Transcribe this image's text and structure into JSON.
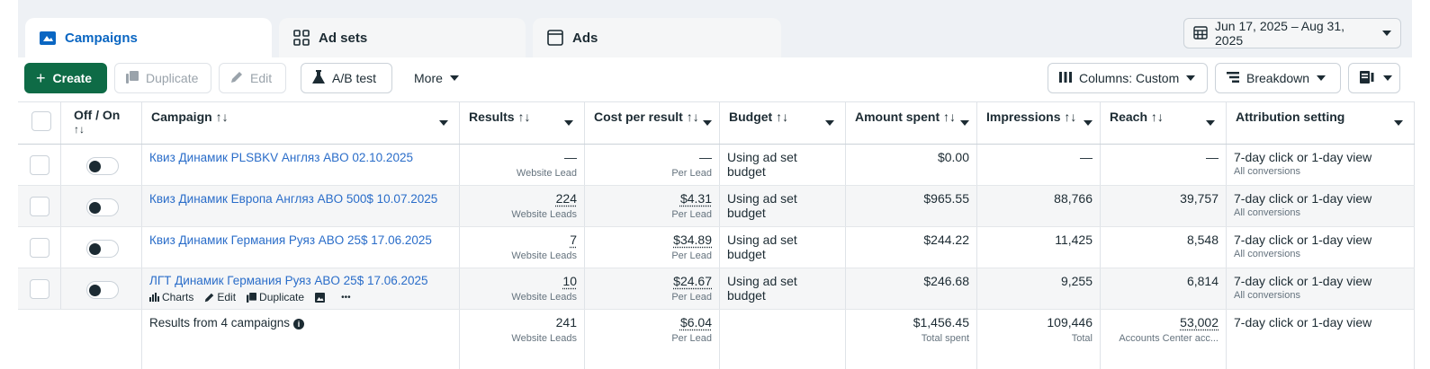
{
  "tabs": [
    {
      "label": "Campaigns",
      "icon": "campaigns-folder-icon",
      "active": true
    },
    {
      "label": "Ad sets",
      "icon": "grid-icon",
      "active": false
    },
    {
      "label": "Ads",
      "icon": "ad-frame-icon",
      "active": false
    }
  ],
  "date_range": {
    "label": "Jun 17, 2025 – Aug 31, 2025",
    "icon": "calendar-icon"
  },
  "toolbar": {
    "create_label": "Create",
    "duplicate_label": "Duplicate",
    "edit_label": "Edit",
    "ab_test_label": "A/B test",
    "more_label": "More",
    "columns_label": "Columns: Custom",
    "breakdown_label": "Breakdown"
  },
  "columns": {
    "off_on": "Off / On",
    "off_on_sort": "↑↓",
    "campaign": "Campaign ↑↓",
    "results": "Results ↑↓",
    "cost_per_result": "Cost per result ↑↓",
    "budget": "Budget ↑↓",
    "amount_spent": "Amount spent ↑↓",
    "impressions": "Impressions ↑↓",
    "reach": "Reach ↑↓",
    "attribution": "Attribution setting"
  },
  "rows": [
    {
      "name": "Квиз Динамик PLSBKV Англяз ABO 02.10.2025",
      "results": "—",
      "results_sub": "Website Lead",
      "cost": "—",
      "cost_sub": "Per Lead",
      "budget": "Using ad set budget",
      "spent": "$0.00",
      "impressions": "—",
      "reach": "—",
      "attribution": "7-day click or 1-day view",
      "attribution_sub": "All conversions"
    },
    {
      "name": "Квиз Динамик Европа Англяз ABO 500$ 10.07.2025",
      "results": "224",
      "results_sub": "Website Leads",
      "cost": "$4.31",
      "cost_sub": "Per Lead",
      "budget": "Using ad set budget",
      "spent": "$965.55",
      "impressions": "88,766",
      "reach": "39,757",
      "attribution": "7-day click or 1-day view",
      "attribution_sub": "All conversions"
    },
    {
      "name": "Квиз Динамик Германия Руяз ABO 25$ 17.06.2025",
      "results": "7",
      "results_sub": "Website Leads",
      "cost": "$34.89",
      "cost_sub": "Per Lead",
      "budget": "Using ad set budget",
      "spent": "$244.22",
      "impressions": "11,425",
      "reach": "8,548",
      "attribution": "7-day click or 1-day view",
      "attribution_sub": "All conversions"
    },
    {
      "name": "ЛГТ Динамик Германия Руяз ABO 25$ 17.06.2025",
      "results": "10",
      "results_sub": "Website Leads",
      "cost": "$24.67",
      "cost_sub": "Per Lead",
      "budget": "Using ad set budget",
      "spent": "$246.68",
      "impressions": "9,255",
      "reach": "6,814",
      "attribution": "7-day click or 1-day view",
      "attribution_sub": "All conversions",
      "actions": {
        "charts": "Charts",
        "edit": "Edit",
        "duplicate": "Duplicate",
        "more": "•••"
      }
    }
  ],
  "summary": {
    "label": "Results from 4 campaigns",
    "results": "241",
    "results_sub": "Website Leads",
    "cost": "$6.04",
    "cost_sub": "Per Lead",
    "spent": "$1,456.45",
    "spent_sub": "Total spent",
    "impressions": "109,446",
    "impressions_sub": "Total",
    "reach": "53,002",
    "reach_sub": "Accounts Center acc...",
    "attribution": "7-day click or 1-day view"
  },
  "colors": {
    "accent": "#0a66c2",
    "create_button": "#0e6b46",
    "link": "#2a6dc9"
  }
}
